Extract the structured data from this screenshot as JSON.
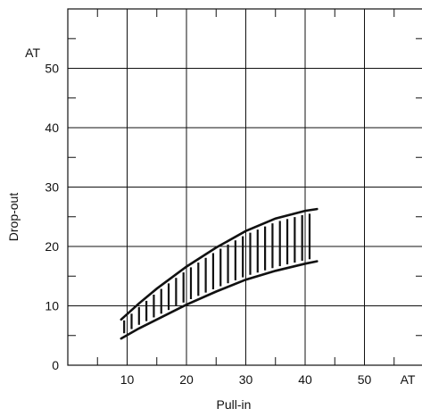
{
  "chart_data": {
    "type": "area",
    "title": "",
    "xlabel": "Pull-in",
    "ylabel": "Drop-out",
    "x_unit": "AT",
    "y_unit": "AT",
    "xlim": [
      0,
      60
    ],
    "ylim": [
      0,
      60
    ],
    "x_ticks": [
      10,
      20,
      30,
      40,
      50
    ],
    "y_ticks": [
      0,
      10,
      20,
      30,
      40,
      50
    ],
    "grid": true,
    "hatched_band": true,
    "series": [
      {
        "x": [
          9,
          12,
          15,
          20,
          25,
          30,
          35,
          40,
          42
        ],
        "values": [
          7.7,
          10.4,
          12.9,
          16.6,
          19.8,
          22.6,
          24.7,
          26.0,
          26.3
        ]
      },
      {
        "x": [
          9,
          12,
          15,
          20,
          25,
          30,
          35,
          40,
          42
        ],
        "values": [
          4.5,
          6.2,
          7.7,
          10.2,
          12.4,
          14.4,
          15.9,
          17.1,
          17.5
        ]
      }
    ]
  }
}
